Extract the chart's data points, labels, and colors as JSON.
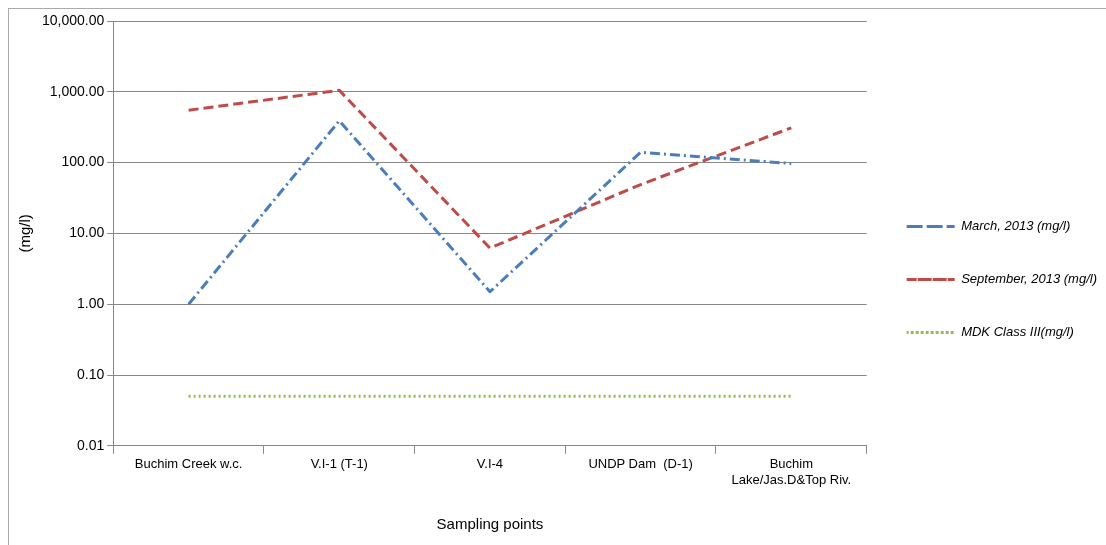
{
  "chart_data": {
    "type": "line",
    "xlabel": "Sampling points",
    "ylabel": "(mg/l)",
    "categories": [
      "Buchim Creek w.c.",
      "V.I-1 (T-1)",
      "V.I-4",
      "UNDP Dam  (D-1)",
      "Buchim Lake/Jas.D&Top Riv."
    ],
    "series": [
      {
        "name": "March, 2013 (mg/l)",
        "color": "#4a7ebb",
        "line_style": "dashdot",
        "values": [
          1.0,
          390,
          1.5,
          140,
          97
        ]
      },
      {
        "name": "September, 2013 (mg/l)",
        "color": "#be4b48",
        "line_style": "dashed",
        "values": [
          550,
          1050,
          6.2,
          49,
          310
        ]
      },
      {
        "name": "MDK Class III(mg/l)",
        "color": "#98b954",
        "line_style": "dotted",
        "values": [
          0.05,
          0.05,
          0.05,
          0.05,
          0.05
        ]
      }
    ],
    "log": "y",
    "ylim": [
      0.01,
      10000
    ],
    "yticks": [
      {
        "value": 0.01,
        "label": "0.01"
      },
      {
        "value": 0.1,
        "label": "0.10"
      },
      {
        "value": 1,
        "label": "1.00"
      },
      {
        "value": 10,
        "label": "10.00"
      },
      {
        "value": 100,
        "label": "100.00"
      },
      {
        "value": 1000,
        "label": "1,000.00"
      },
      {
        "value": 10000,
        "label": "10,000.00"
      }
    ],
    "grid": "y",
    "legend": "right",
    "marker": "none"
  }
}
